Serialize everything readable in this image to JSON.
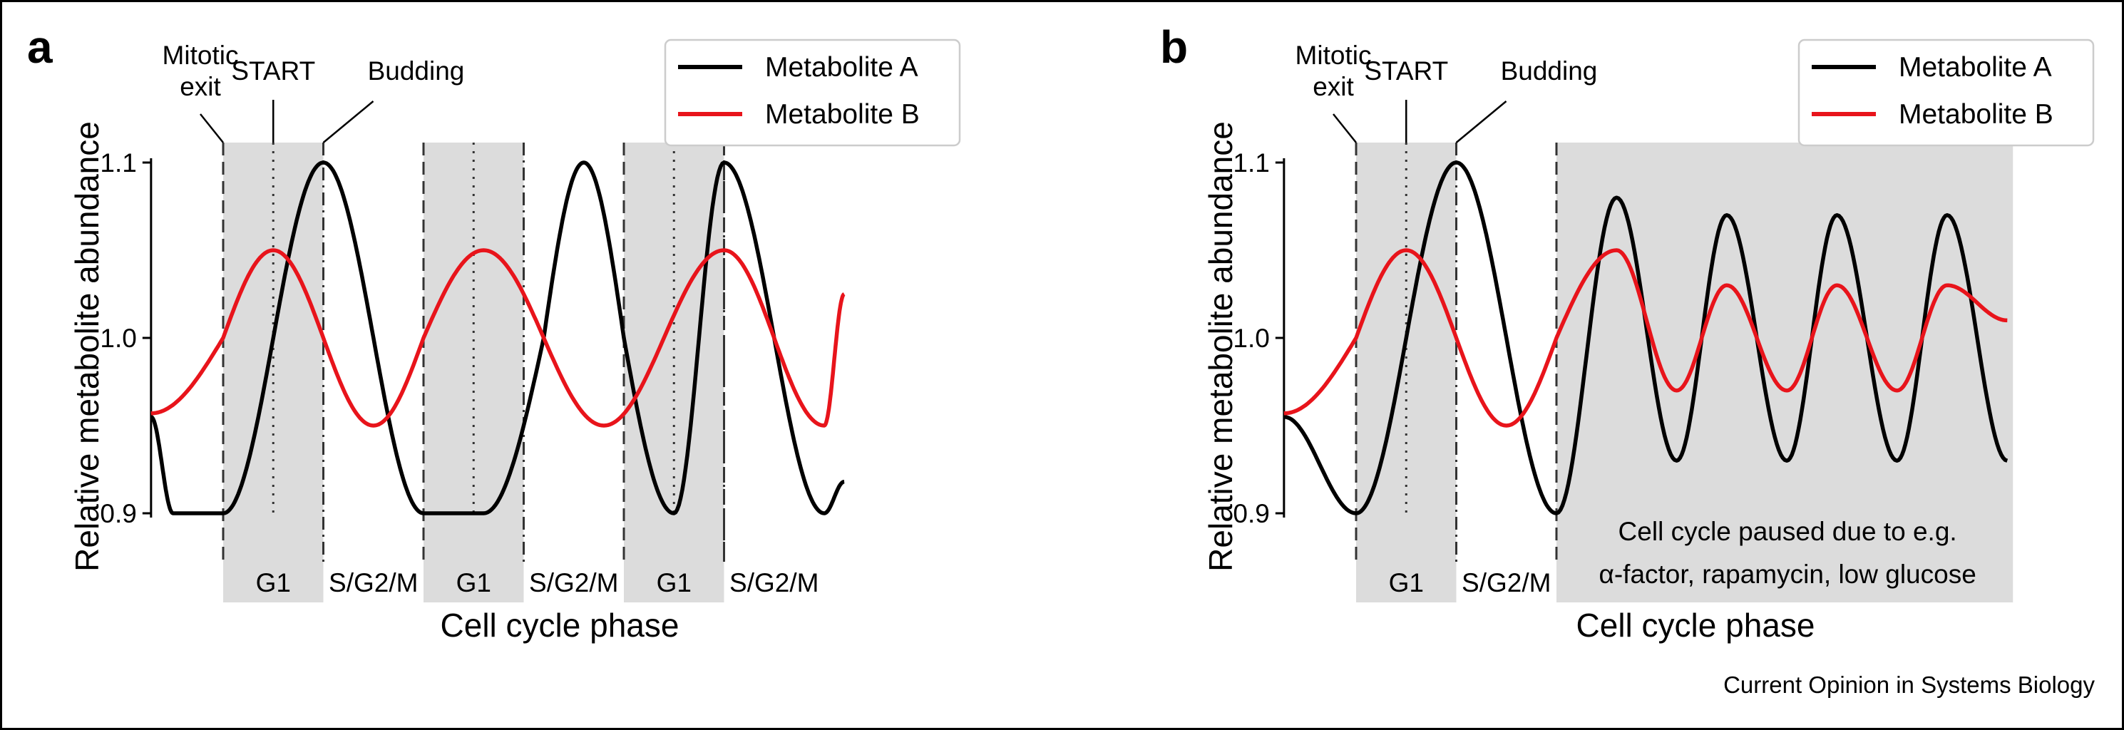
{
  "footer": {
    "credit": "Current Opinion in Systems Biology"
  },
  "colors": {
    "metabolite_a": "#000000",
    "metabolite_b": "#e8141b",
    "shade": "#dcdcdc"
  },
  "chart_data": [
    {
      "panel_label": "a",
      "type": "line",
      "ylabel": "Relative metabolite abundance",
      "xlabel": "Cell cycle phase",
      "ylim": [
        0.9,
        1.1
      ],
      "yticks": [
        "0.9",
        "1.0",
        "1.1"
      ],
      "legend": {
        "position": "top-right",
        "entries": [
          "Metabolite A",
          "Metabolite B"
        ]
      },
      "annotations": {
        "mitotic_exit_line1": "Mitotic",
        "mitotic_exit_line2": "exit",
        "start": "START",
        "budding": "Budding"
      },
      "x": [
        0.0,
        0.13,
        0.5,
        1.0,
        1.5,
        1.87,
        2.0,
        2.5,
        3.0,
        3.5,
        3.87,
        4.0,
        4.5,
        5.0
      ],
      "phases": [
        {
          "label": "G1",
          "start": 0.0,
          "end": 1.0,
          "shaded": true
        },
        {
          "label": "S/G2/M",
          "start": 1.0,
          "end": 2.0,
          "shaded": false
        },
        {
          "label": "G1",
          "start": 2.0,
          "end": 3.0,
          "shaded": true
        },
        {
          "label": "S/G2/M",
          "start": 3.0,
          "end": 4.0,
          "shaded": false
        },
        {
          "label": "G1",
          "start": 4.0,
          "end": 5.0,
          "shaded": true
        },
        {
          "label": "S/G2/M",
          "start": 5.0,
          "end": 6.0,
          "shaded": false
        }
      ],
      "series": [
        {
          "name": "Metabolite A",
          "color": "#000000",
          "x": [
            -0.72,
            -0.5,
            0.0,
            0.5,
            1.0,
            1.5,
            2.0,
            2.6,
            3.2,
            3.6,
            4.0,
            4.5,
            5.0,
            5.5,
            6.0,
            6.2
          ],
          "values": [
            0.955,
            0.9,
            0.9,
            1.0,
            1.1,
            1.0,
            0.9,
            0.9,
            1.0,
            1.1,
            1.0,
            0.9,
            1.1,
            1.0,
            0.9,
            0.918
          ]
        },
        {
          "name": "Metabolite B",
          "color": "#e8141b",
          "x": [
            -0.72,
            0.0,
            0.5,
            1.0,
            1.5,
            2.0,
            2.6,
            3.2,
            3.8,
            4.4,
            5.0,
            5.5,
            6.0,
            6.2
          ],
          "values": [
            0.957,
            1.0,
            1.05,
            1.0,
            0.95,
            1.0,
            1.05,
            1.0,
            0.95,
            1.0,
            1.05,
            1.0,
            0.95,
            1.025
          ]
        }
      ]
    },
    {
      "panel_label": "b",
      "type": "line",
      "ylabel": "Relative metabolite abundance",
      "xlabel": "Cell cycle phase",
      "ylim": [
        0.9,
        1.1
      ],
      "yticks": [
        "0.9",
        "1.0",
        "1.1"
      ],
      "legend": {
        "position": "top-right",
        "entries": [
          "Metabolite A",
          "Metabolite B"
        ]
      },
      "annotations": {
        "mitotic_exit_line1": "Mitotic",
        "mitotic_exit_line2": "exit",
        "start": "START",
        "budding": "Budding"
      },
      "phases": [
        {
          "label": "G1",
          "start": 0.0,
          "end": 1.0,
          "shaded": true
        },
        {
          "label": "S/G2/M",
          "start": 1.0,
          "end": 2.0,
          "shaded": false
        }
      ],
      "paused_region": {
        "start": 2.0,
        "end": 7.0,
        "line1": "Cell cycle paused due to e.g.",
        "line2": "α-factor, rapamycin, low glucose"
      },
      "series": [
        {
          "name": "Metabolite A",
          "color": "#000000",
          "x": [
            -0.72,
            0.0,
            0.5,
            1.0,
            1.5,
            2.0,
            2.6,
            3.2,
            3.7,
            4.3,
            4.8,
            5.4,
            5.9,
            6.5
          ],
          "values": [
            0.955,
            0.9,
            1.0,
            1.1,
            1.0,
            0.9,
            1.08,
            0.93,
            1.07,
            0.93,
            1.07,
            0.93,
            1.07,
            0.93
          ]
        },
        {
          "name": "Metabolite B",
          "color": "#e8141b",
          "x": [
            -0.72,
            0.0,
            0.5,
            1.0,
            1.5,
            2.0,
            2.6,
            3.2,
            3.7,
            4.3,
            4.8,
            5.4,
            5.9,
            6.5
          ],
          "values": [
            0.957,
            1.0,
            1.05,
            1.0,
            0.95,
            1.0,
            1.05,
            0.97,
            1.03,
            0.97,
            1.03,
            0.97,
            1.03,
            1.01
          ]
        }
      ]
    }
  ]
}
